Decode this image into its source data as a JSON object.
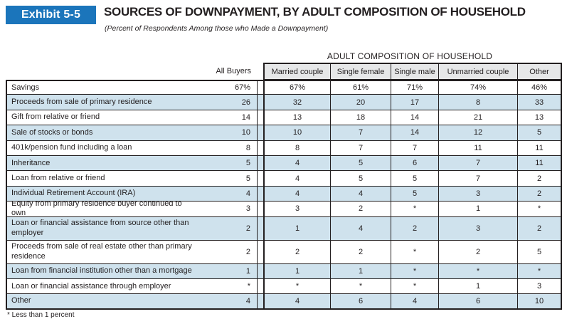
{
  "exhibit": {
    "badge": "Exhibit 5-5",
    "title": "SOURCES OF DOWNPAYMENT, BY ADULT COMPOSITION OF HOUSEHOLD",
    "subtitle": "(Percent of Respondents Among those who Made a Downpayment)"
  },
  "table": {
    "group_header": "ADULT COMPOSITION OF HOUSEHOLD",
    "columns": [
      "All Buyers",
      "Married couple",
      "Single female",
      "Single male",
      "Unmarried couple",
      "Other"
    ],
    "rows": [
      {
        "label": "Savings",
        "values": [
          "67%",
          "67%",
          "61%",
          "71%",
          "74%",
          "46%"
        ]
      },
      {
        "label": "Proceeds from sale of primary residence",
        "values": [
          "26",
          "32",
          "20",
          "17",
          "8",
          "33"
        ]
      },
      {
        "label": "Gift from relative or friend",
        "values": [
          "14",
          "13",
          "18",
          "14",
          "21",
          "13"
        ]
      },
      {
        "label": "Sale of stocks or bonds",
        "values": [
          "10",
          "10",
          "7",
          "14",
          "12",
          "5"
        ]
      },
      {
        "label": "401k/pension fund including a loan",
        "values": [
          "8",
          "8",
          "7",
          "7",
          "11",
          "11"
        ]
      },
      {
        "label": "Inheritance",
        "values": [
          "5",
          "4",
          "5",
          "6",
          "7",
          "11"
        ]
      },
      {
        "label": "Loan from relative or friend",
        "values": [
          "5",
          "4",
          "5",
          "5",
          "7",
          "2"
        ]
      },
      {
        "label": "Individual Retirement Account (IRA)",
        "values": [
          "4",
          "4",
          "4",
          "5",
          "3",
          "2"
        ]
      },
      {
        "label": "Equity from primary residence buyer continued to own",
        "values": [
          "3",
          "3",
          "2",
          "*",
          "1",
          "*"
        ]
      },
      {
        "label": "Loan or financial assistance from source other than employer",
        "values": [
          "2",
          "1",
          "4",
          "2",
          "3",
          "2"
        ]
      },
      {
        "label": "Proceeds from sale of real estate other than primary residence",
        "values": [
          "2",
          "2",
          "2",
          "*",
          "2",
          "5"
        ]
      },
      {
        "label": "Loan from financial institution other than a mortgage",
        "values": [
          "1",
          "1",
          "1",
          "*",
          "*",
          "*"
        ]
      },
      {
        "label": "Loan or financial assistance through employer",
        "values": [
          "*",
          "*",
          "*",
          "*",
          "1",
          "3"
        ]
      },
      {
        "label": "Other",
        "values": [
          "4",
          "4",
          "6",
          "4",
          "6",
          "10"
        ]
      }
    ]
  },
  "footnote": "* Less than 1 percent",
  "colors": {
    "badge_blue": "#1b75bb",
    "stripe_blue": "#cfe2ed",
    "header_gray": "#e6e7e8",
    "ink": "#231f20"
  }
}
